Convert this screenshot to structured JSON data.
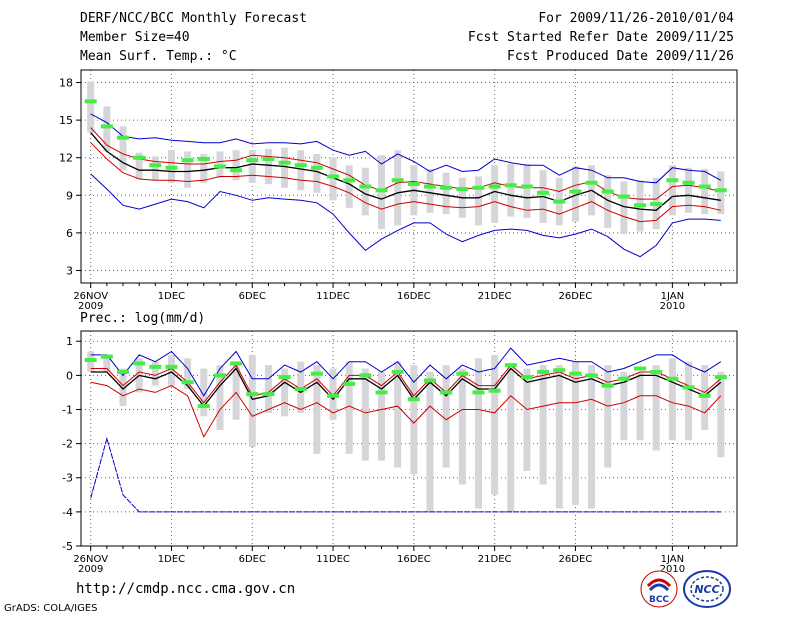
{
  "header": {
    "title": "DERF/NCC/BCC Monthly Forecast",
    "member_size": "Member Size=40",
    "variable": "Mean Surf. Temp.: °C",
    "period": "For 2009/11/26-2010/01/04",
    "started": "Fcst Started Refer Date 2009/11/25",
    "produced": "Fcst Produced Date 2009/11/26"
  },
  "footer": {
    "url": "http://cmdp.ncc.cma.gov.cn",
    "credit": "GrADS: COLA/IGES",
    "logo_bcc_text": "BCC",
    "logo_ncc_text": "NCC"
  },
  "colors": {
    "max_line": "#0000cc",
    "pct_line": "#cc0000",
    "mean_line": "#000000",
    "box": "#d6d6da",
    "median": "#44ee44",
    "grid": "#666666"
  },
  "chart_data": [
    {
      "type": "line",
      "title": "Mean Surf. Temp.: °C",
      "xlabel": "",
      "ylabel": "",
      "x_ticks": [
        "26NOV\n2009",
        "1DEC",
        "6DEC",
        "11DEC",
        "16DEC",
        "21DEC",
        "26DEC",
        "1JAN\n2010"
      ],
      "x_tick_days": [
        0,
        5,
        10,
        15,
        20,
        25,
        30,
        36
      ],
      "xlim": [
        -0.6,
        40
      ],
      "ylim": [
        2,
        19
      ],
      "y_ticks": [
        3,
        6,
        9,
        12,
        15,
        18
      ],
      "days": 40,
      "box_low": [
        14,
        12.5,
        11,
        10.3,
        10.2,
        10,
        9.6,
        10,
        10.4,
        10.2,
        10,
        9.9,
        9.6,
        9.4,
        9.2,
        8.6,
        8,
        7.4,
        6.3,
        6.6,
        7.4,
        7.6,
        7.5,
        7.2,
        6.6,
        6.8,
        7.3,
        7.2,
        6.8,
        6.6,
        6.9,
        7.4,
        6.4,
        5.9,
        6.1,
        6.3,
        7.4,
        7.6,
        7.5,
        7.5
      ],
      "box_high": [
        18.1,
        16.1,
        14.5,
        12.4,
        12.1,
        12.6,
        12.5,
        12.3,
        12.5,
        12.6,
        12.6,
        12.7,
        12.8,
        12.6,
        12.3,
        12,
        11.4,
        11.2,
        12.2,
        12.6,
        11.4,
        11.1,
        10.8,
        10.4,
        10.5,
        11.4,
        11.5,
        11.5,
        11,
        10.4,
        11.3,
        11.4,
        10.6,
        10.1,
        10.2,
        10.4,
        11.4,
        11.2,
        11.1,
        10.9
      ],
      "median": [
        16.5,
        14.5,
        13.6,
        12,
        11.4,
        11.2,
        11.8,
        11.9,
        11.3,
        11,
        11.8,
        11.9,
        11.6,
        11.4,
        11.2,
        10.5,
        10.2,
        9.7,
        9.4,
        10.2,
        9.9,
        9.7,
        9.6,
        9.5,
        9.6,
        9.7,
        9.8,
        9.7,
        9.2,
        8.5,
        9.3,
        10,
        9.3,
        8.9,
        8.2,
        8.3,
        10.2,
        10,
        9.7,
        9.4
      ],
      "series": [
        {
          "name": "max",
          "color": "#0000cc",
          "values": [
            15.5,
            14.8,
            13.7,
            13.5,
            13.6,
            13.4,
            13.3,
            13.2,
            13.2,
            13.5,
            13.1,
            13.2,
            13.2,
            13.1,
            13.3,
            12.6,
            12.2,
            12.5,
            11.5,
            12.3,
            11.7,
            10.9,
            11.4,
            10.9,
            11,
            11.9,
            11.6,
            11.4,
            11.4,
            10.6,
            11.2,
            11,
            10.4,
            10.4,
            10.1,
            10,
            11.2,
            11,
            10.9,
            10.2
          ]
        },
        {
          "name": "p90",
          "color": "#cc0000",
          "values": [
            14.4,
            13,
            12.3,
            11.9,
            11.7,
            11.6,
            11.5,
            11.5,
            11.7,
            11.8,
            12.2,
            12.1,
            12,
            11.8,
            11.6,
            11.1,
            10.6,
            9.8,
            9.4,
            10,
            10.1,
            9.9,
            9.7,
            9.5,
            9.6,
            10,
            9.7,
            9.6,
            9.6,
            9.3,
            9.8,
            10.1,
            9.3,
            8.8,
            8.7,
            8.7,
            9.7,
            9.8,
            9.6,
            9.3
          ]
        },
        {
          "name": "mean",
          "color": "#000000",
          "values": [
            14,
            12.5,
            11.6,
            11,
            11,
            10.9,
            10.9,
            11,
            11.2,
            11.2,
            11.5,
            11.4,
            11.3,
            11.1,
            10.9,
            10.4,
            9.9,
            9.1,
            8.7,
            9.2,
            9.4,
            9.2,
            9,
            8.8,
            8.8,
            9.3,
            9,
            8.8,
            8.9,
            8.5,
            9,
            9.4,
            8.6,
            8.1,
            7.9,
            7.8,
            8.9,
            9,
            8.8,
            8.6
          ]
        },
        {
          "name": "p10",
          "color": "#cc0000",
          "values": [
            13.2,
            11.9,
            10.8,
            10.3,
            10.2,
            10.2,
            10.1,
            10.2,
            10.5,
            10.5,
            10.6,
            10.5,
            10.4,
            10.2,
            10.1,
            9.7,
            9.2,
            8.4,
            7.9,
            8.3,
            8.5,
            8.3,
            8.1,
            8,
            8.1,
            8.5,
            8.1,
            7.8,
            7.9,
            7.5,
            8,
            8.5,
            7.8,
            7.3,
            6.9,
            7,
            8.1,
            8.2,
            8.1,
            7.8
          ]
        },
        {
          "name": "min",
          "color": "#0000cc",
          "values": [
            10.7,
            9.5,
            8.2,
            7.9,
            8.3,
            8.7,
            8.5,
            8,
            9.3,
            9,
            8.6,
            8.8,
            8.7,
            8.6,
            8.4,
            7.5,
            6,
            4.6,
            5.5,
            6.2,
            6.8,
            6.8,
            5.9,
            5.3,
            5.8,
            6.2,
            6.3,
            6.2,
            5.8,
            5.6,
            5.9,
            6.3,
            5.7,
            4.7,
            4.1,
            5,
            6.8,
            7.1,
            7.1,
            7
          ]
        }
      ]
    },
    {
      "type": "line",
      "title": "Prec.: log(mm/d)",
      "xlabel": "",
      "ylabel": "",
      "x_ticks": [
        "26NOV\n2009",
        "1DEC",
        "6DEC",
        "11DEC",
        "16DEC",
        "21DEC",
        "26DEC",
        "1JAN\n2010"
      ],
      "x_tick_days": [
        0,
        5,
        10,
        15,
        20,
        25,
        30,
        36
      ],
      "xlim": [
        -0.6,
        40
      ],
      "ylim": [
        -5,
        1.3
      ],
      "y_ticks": [
        -5,
        -4,
        -3,
        -2,
        -1,
        0,
        1
      ],
      "days": 40,
      "box_low": [
        0.1,
        0.1,
        -0.9,
        -0.5,
        -0.3,
        -0.3,
        -0.4,
        -1.2,
        -1.6,
        -1.3,
        -2.1,
        -1.1,
        -1.2,
        -1.1,
        -2.3,
        -1.3,
        -2.3,
        -2.5,
        -2.5,
        -2.7,
        -2.9,
        -4,
        -2.7,
        -3.2,
        -3.9,
        -3.5,
        -4,
        -2.8,
        -3.2,
        -3.9,
        -3.8,
        -3.9,
        -2.7,
        -1.9,
        -1.9,
        -2.2,
        -1.9,
        -1.9,
        -1.6,
        -2.4
      ],
      "box_high": [
        0.7,
        0.6,
        0.2,
        0.5,
        0.4,
        0.6,
        0.5,
        0.2,
        0.3,
        0.4,
        0.6,
        0.3,
        0.2,
        0.4,
        0.3,
        0.2,
        0.4,
        0.2,
        0.1,
        0.4,
        0.3,
        0.1,
        0.3,
        0.2,
        0.5,
        0.6,
        0.3,
        0.2,
        0.3,
        0.3,
        0.4,
        0.3,
        0.3,
        0.1,
        0.1,
        0.3,
        0.5,
        0.4,
        0.3,
        0.1
      ],
      "median": [
        0.45,
        0.55,
        0.1,
        0.35,
        0.25,
        0.25,
        -0.2,
        -0.9,
        0.0,
        0.35,
        -0.55,
        -0.55,
        -0.05,
        -0.4,
        0.05,
        -0.6,
        -0.25,
        0.0,
        -0.5,
        0.1,
        -0.7,
        -0.15,
        -0.5,
        0.05,
        -0.5,
        -0.45,
        0.3,
        -0.05,
        0.1,
        0.15,
        0.05,
        0.0,
        -0.3,
        -0.1,
        0.2,
        0.1,
        -0.1,
        -0.35,
        -0.6,
        -0.05
      ],
      "series": [
        {
          "name": "max",
          "color": "#0000cc",
          "values": [
            0.6,
            0.6,
            0.0,
            0.6,
            0.4,
            0.7,
            0.2,
            -0.6,
            0.2,
            0.7,
            -0.1,
            -0.1,
            0.3,
            0.1,
            0.4,
            -0.1,
            0.4,
            0.4,
            0.1,
            0.4,
            -0.2,
            0.3,
            -0.1,
            0.3,
            0.1,
            0.2,
            0.8,
            0.3,
            0.4,
            0.5,
            0.4,
            0.4,
            0.1,
            0.2,
            0.4,
            0.6,
            0.6,
            0.3,
            0.1,
            0.4
          ]
        },
        {
          "name": "p90",
          "color": "#cc0000",
          "values": [
            0.2,
            0.2,
            -0.3,
            0.1,
            0.0,
            0.2,
            -0.2,
            -0.8,
            -0.2,
            0.3,
            -0.6,
            -0.5,
            -0.1,
            -0.4,
            -0.1,
            -0.6,
            0.0,
            0.0,
            -0.3,
            0.1,
            -0.6,
            -0.1,
            -0.5,
            0.0,
            -0.3,
            -0.3,
            0.3,
            -0.1,
            0.0,
            0.1,
            -0.1,
            0.0,
            -0.2,
            -0.1,
            0.1,
            0.1,
            -0.1,
            -0.3,
            -0.5,
            -0.1
          ]
        },
        {
          "name": "mean",
          "color": "#000000",
          "values": [
            0.1,
            0.1,
            -0.4,
            0.0,
            -0.1,
            0.1,
            -0.3,
            -0.9,
            -0.3,
            0.2,
            -0.7,
            -0.6,
            -0.2,
            -0.5,
            -0.2,
            -0.7,
            -0.1,
            -0.1,
            -0.4,
            0.0,
            -0.7,
            -0.2,
            -0.6,
            -0.1,
            -0.4,
            -0.4,
            0.2,
            -0.2,
            -0.1,
            0.0,
            -0.2,
            -0.1,
            -0.3,
            -0.2,
            0.0,
            0.0,
            -0.2,
            -0.4,
            -0.6,
            -0.2
          ]
        },
        {
          "name": "p10",
          "color": "#cc0000",
          "values": [
            -0.2,
            -0.3,
            -0.6,
            -0.4,
            -0.5,
            -0.3,
            -0.6,
            -1.8,
            -1.0,
            -0.5,
            -1.2,
            -1.0,
            -0.8,
            -1.0,
            -0.8,
            -1.1,
            -0.9,
            -1.1,
            -1.0,
            -0.9,
            -1.4,
            -0.9,
            -1.3,
            -1.0,
            -1.0,
            -1.1,
            -0.6,
            -1.0,
            -0.9,
            -0.8,
            -0.8,
            -0.7,
            -0.9,
            -0.8,
            -0.6,
            -0.6,
            -0.8,
            -0.9,
            -1.1,
            -0.6
          ]
        },
        {
          "name": "min",
          "color": "#0000cc",
          "values": [
            -3.6,
            -1.85,
            -3.5,
            -4,
            -4,
            -4,
            -4,
            -4,
            -4,
            -4,
            -4,
            -4,
            -4,
            -4,
            -4,
            -4,
            -4,
            -4,
            -4,
            -4,
            -4,
            -4,
            -4,
            -4,
            -4,
            -4,
            -4,
            -4,
            -4,
            -4,
            -4,
            -4,
            -4,
            -4,
            -4,
            -4,
            -4,
            -4,
            -4,
            -4
          ]
        }
      ]
    }
  ]
}
